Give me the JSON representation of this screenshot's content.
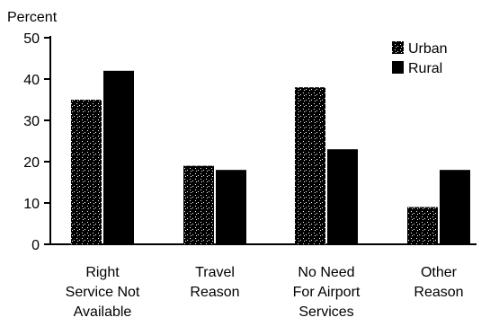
{
  "chart_data": {
    "type": "bar",
    "ylabel": "Percent",
    "ylim": [
      0,
      50
    ],
    "yticks": [
      0,
      10,
      20,
      30,
      40,
      50
    ],
    "grid": false,
    "legend_position": "top-right",
    "categories": [
      [
        "Right",
        "Service Not",
        "Available"
      ],
      [
        "Travel",
        "Reason"
      ],
      [
        "No Need",
        "For Airport",
        "Services"
      ],
      [
        "Other",
        "Reason"
      ]
    ],
    "series": [
      {
        "name": "Urban",
        "values": [
          35,
          19,
          38,
          9
        ],
        "pattern": "stipple"
      },
      {
        "name": "Rural",
        "values": [
          42,
          18,
          23,
          18
        ],
        "pattern": "solid"
      }
    ],
    "colors": {
      "bar_dark": "#000000",
      "bar_light": "#ffffff",
      "axis": "#000000"
    }
  }
}
